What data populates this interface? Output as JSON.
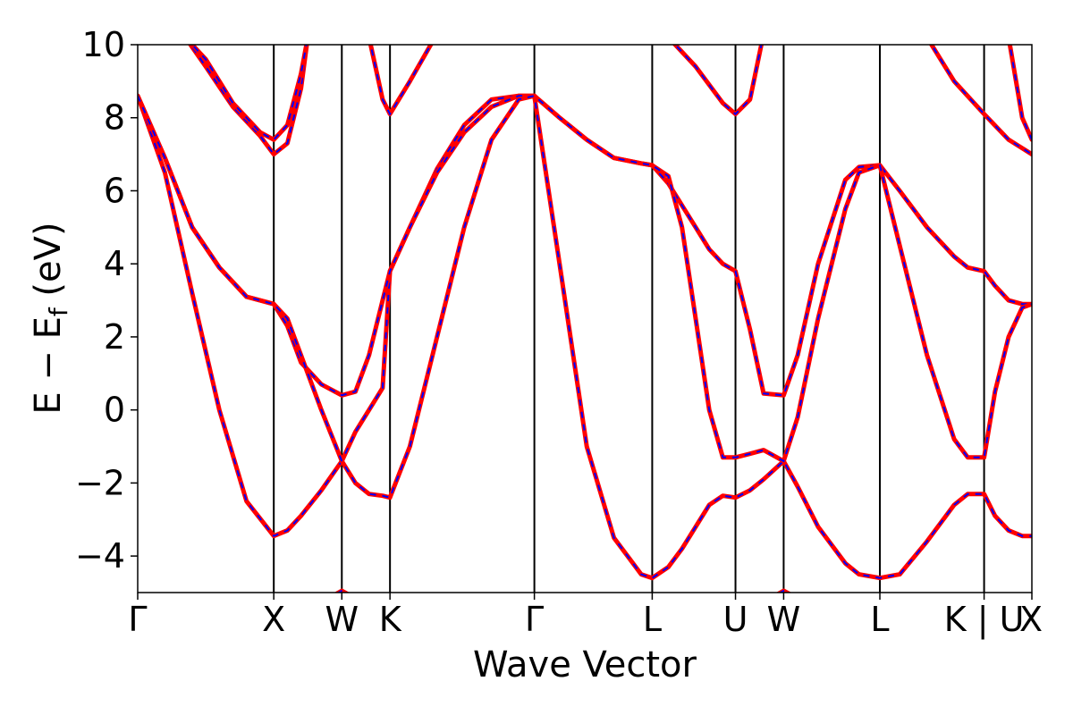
{
  "chart_data": {
    "type": "line",
    "title": "",
    "xlabel": "Wave Vector",
    "ylabel": "E − E_f (eV)",
    "ylabel_parts": {
      "main": "E − E",
      "sub": "f",
      "tail": " (eV)"
    },
    "ylim": [
      -5,
      10
    ],
    "yticks": [
      -4,
      -2,
      0,
      2,
      4,
      6,
      8,
      10
    ],
    "ytick_labels": [
      "−4",
      "−2",
      "0",
      "2",
      "4",
      "6",
      "8",
      "10"
    ],
    "grid": false,
    "legend": "none",
    "colors": {
      "bands": "#ff0000",
      "overlay": "#0000ff",
      "kline": "#000000"
    },
    "xlim": [
      0,
      6.571
    ],
    "kpoints": [
      {
        "label": "Γ",
        "x": 0
      },
      {
        "label": "X",
        "x": 1.0
      },
      {
        "label": "W",
        "x": 1.5
      },
      {
        "label": "K",
        "x": 1.854
      },
      {
        "label": "Γ",
        "x": 2.915
      },
      {
        "label": "L",
        "x": 3.781
      },
      {
        "label": "U",
        "x": 4.393
      },
      {
        "label": "W",
        "x": 4.747
      },
      {
        "label": "L",
        "x": 5.454
      },
      {
        "label": "K | U",
        "x": 6.22
      },
      {
        "label": "X",
        "x": 6.571
      }
    ],
    "series": [
      {
        "x": [
          0,
          0.2,
          0.4,
          0.6,
          0.8,
          1.0,
          1.1,
          1.2,
          1.35,
          1.5,
          1.6,
          1.7,
          1.8,
          1.854,
          2.0,
          2.2,
          2.4,
          2.6,
          2.8,
          2.915,
          3.1,
          3.3,
          3.5,
          3.7,
          3.781,
          3.9,
          4.0,
          4.1,
          4.2,
          4.3,
          4.393,
          4.5,
          4.6,
          4.747,
          4.85,
          5.0,
          5.2,
          5.3,
          5.454,
          5.6,
          5.8,
          6.0,
          6.1,
          6.22,
          6.3,
          6.4,
          6.5,
          6.571
        ],
        "y": [
          8.6,
          6.5,
          3.2,
          0.0,
          -2.5,
          -3.45,
          -3.3,
          -2.9,
          -2.2,
          -1.4,
          -0.6,
          0.0,
          0.6,
          3.8,
          5.0,
          6.6,
          7.8,
          8.5,
          8.6,
          8.6,
          8.0,
          7.4,
          6.9,
          6.75,
          6.7,
          6.2,
          5.6,
          5.0,
          4.4,
          4.0,
          3.8,
          2.2,
          0.45,
          0.4,
          1.5,
          4.0,
          6.3,
          6.65,
          6.7,
          6.0,
          5.0,
          4.2,
          3.9,
          3.8,
          3.4,
          3.0,
          2.9,
          2.9
        ]
      },
      {
        "x": [
          0,
          0.2,
          0.4,
          0.6,
          0.8,
          1.0,
          1.1,
          1.2,
          1.35,
          1.5,
          1.6,
          1.7,
          1.8,
          1.854,
          2.0,
          2.2,
          2.4,
          2.6,
          2.8,
          2.915,
          3.1,
          3.3,
          3.5,
          3.7,
          3.781,
          3.9,
          4.0,
          4.1,
          4.2,
          4.3,
          4.393,
          4.5,
          4.6,
          4.747,
          4.85,
          5.0,
          5.2,
          5.3,
          5.454,
          5.6,
          5.8,
          6.0,
          6.1,
          6.22,
          6.3,
          6.4,
          6.5,
          6.571
        ],
        "y": [
          8.6,
          6.9,
          5.0,
          3.9,
          3.1,
          2.9,
          2.3,
          1.3,
          0.7,
          0.4,
          0.5,
          1.5,
          3.0,
          3.8,
          5.0,
          6.5,
          7.6,
          8.3,
          8.6,
          8.6,
          4.0,
          -1.0,
          -3.5,
          -4.5,
          -4.6,
          -4.3,
          -3.8,
          -3.2,
          -2.6,
          -2.35,
          -2.4,
          -2.2,
          -1.9,
          -1.4,
          -2.1,
          -3.2,
          -4.2,
          -4.5,
          -4.6,
          -4.5,
          -3.6,
          -2.6,
          -2.3,
          -2.3,
          -2.9,
          -3.3,
          -3.45,
          -3.45
        ]
      },
      {
        "x": [
          0,
          0.2,
          0.4,
          0.6,
          0.8,
          1.0,
          1.1,
          1.2,
          1.35,
          1.5,
          1.6,
          1.7,
          1.8,
          1.854,
          2.0,
          2.2,
          2.4,
          2.6,
          2.8,
          2.915,
          3.1,
          3.3,
          3.5,
          3.7,
          3.781,
          3.9,
          4.0,
          4.1,
          4.2,
          4.3,
          4.393,
          4.5,
          4.6,
          4.747,
          4.85,
          5.0,
          5.2,
          5.3,
          5.454,
          5.6,
          5.8,
          6.0,
          6.1,
          6.22,
          6.3,
          6.4,
          6.5,
          6.571
        ],
        "y": [
          8.6,
          6.9,
          5.0,
          3.9,
          3.1,
          2.9,
          2.5,
          1.5,
          0.0,
          -1.4,
          -2.0,
          -2.3,
          -2.35,
          -2.4,
          -1.0,
          2.0,
          5.0,
          7.4,
          8.5,
          8.6,
          8.0,
          7.4,
          6.9,
          6.75,
          6.7,
          6.4,
          5.0,
          2.5,
          0.0,
          -1.3,
          -1.3,
          -1.2,
          -1.1,
          -1.4,
          -0.2,
          2.5,
          5.5,
          6.5,
          6.7,
          4.5,
          1.5,
          -0.8,
          -1.3,
          -1.3,
          0.5,
          2.0,
          2.8,
          2.9
        ]
      },
      {
        "x": [
          0.35,
          0.5,
          0.7,
          0.9,
          1.0,
          1.1,
          1.2,
          1.25
        ],
        "y": [
          10.2,
          9.4,
          8.3,
          7.5,
          7.0,
          7.3,
          8.8,
          10.2
        ]
      },
      {
        "x": [
          0.35,
          0.5,
          0.7,
          0.9,
          1.0,
          1.1,
          1.2,
          1.25
        ],
        "y": [
          10.2,
          9.6,
          8.4,
          7.6,
          7.4,
          7.8,
          9.2,
          10.2
        ]
      },
      {
        "x": [
          1.7,
          1.8,
          1.854,
          2.0,
          2.2
        ],
        "y": [
          10.2,
          8.5,
          8.1,
          9.0,
          10.3
        ]
      },
      {
        "x": [
          3.9,
          4.1,
          4.3,
          4.393,
          4.5,
          4.6
        ],
        "y": [
          10.2,
          9.4,
          8.4,
          8.1,
          8.5,
          10.3
        ]
      },
      {
        "x": [
          5.8,
          6.0,
          6.22,
          6.4,
          6.571
        ],
        "y": [
          10.2,
          9.0,
          8.1,
          7.4,
          7.0
        ]
      },
      {
        "x": [
          6.4,
          6.5,
          6.571
        ],
        "y": [
          10.2,
          8.0,
          7.4
        ]
      },
      {
        "x": [
          1.38,
          1.5,
          1.62
        ],
        "y": [
          -5.2,
          -4.95,
          -5.2
        ]
      },
      {
        "x": [
          4.63,
          4.747,
          4.87
        ],
        "y": [
          -5.2,
          -4.95,
          -5.2
        ]
      }
    ]
  }
}
